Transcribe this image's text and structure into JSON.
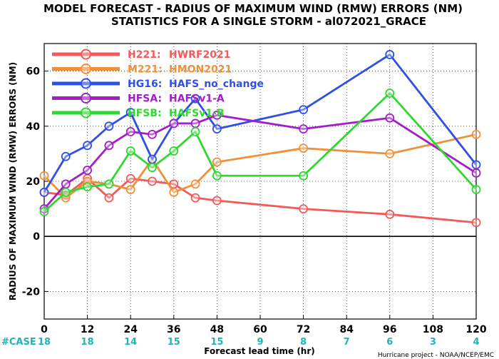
{
  "chart_data": {
    "type": "line",
    "title_line1": "MODEL FORECAST - RADIUS OF MAXIMUM WIND (RMW) ERRORS (NM)",
    "title_line2": "STATISTICS FOR A SINGLE STORM - al072021_GRACE",
    "ylabel": "RADIUS OF MAXIMUM WIND (RMW) ERRORS (NM)",
    "xlabel": "Forecast lead time (hr)",
    "footer": "Hurricane project - NOAA/NCEP/EMC",
    "case_label": "#CASE",
    "xlim": [
      0,
      120
    ],
    "ylim": [
      -30,
      70
    ],
    "x_ticks": [
      0,
      12,
      24,
      36,
      48,
      60,
      72,
      84,
      96,
      108,
      120
    ],
    "x_tick_labels": [
      "0",
      "12",
      "24",
      "36",
      "48",
      "60",
      "72",
      "84",
      "96",
      "108",
      "120"
    ],
    "y_ticks": [
      -20,
      0,
      20,
      40,
      60
    ],
    "y_tick_labels": [
      "-20",
      "0",
      "20",
      "40",
      "60"
    ],
    "case_counts": [
      "18",
      "18",
      "14",
      "15",
      "15",
      "9",
      "8",
      "7",
      "6",
      "3",
      "4"
    ],
    "legend_position": "top-left",
    "series": [
      {
        "code": "H221:",
        "model": "HWRF2021",
        "color": "#f25a5a",
        "x": [
          0,
          6,
          12,
          18,
          24,
          30,
          36,
          42,
          48,
          72,
          96,
          120
        ],
        "y": [
          16,
          15,
          21,
          14,
          21,
          20,
          19,
          14,
          13,
          10,
          8,
          5
        ]
      },
      {
        "code": "M221:",
        "model": "HMON2021",
        "color": "#f0903a",
        "x": [
          0,
          6,
          12,
          18,
          24,
          30,
          36,
          42,
          48,
          72,
          96,
          120
        ],
        "y": [
          22,
          14,
          20,
          19,
          17,
          28,
          16,
          19,
          27,
          32,
          30,
          37
        ]
      },
      {
        "code": "HG16:",
        "model": "HAFS_no_change",
        "color": "#2f4fe8",
        "x": [
          0,
          6,
          12,
          18,
          24,
          30,
          36,
          42,
          48,
          72,
          96,
          120
        ],
        "y": [
          16,
          29,
          33,
          40,
          45,
          28,
          41,
          50,
          39,
          46,
          66,
          26
        ]
      },
      {
        "code": "HFSA:",
        "model": "HAFSv1-A",
        "color": "#a21ec9",
        "x": [
          0,
          6,
          12,
          18,
          24,
          30,
          36,
          42,
          48,
          72,
          96,
          120
        ],
        "y": [
          10,
          19,
          24,
          33,
          38,
          37,
          41,
          41,
          44,
          39,
          43,
          23
        ]
      },
      {
        "code": "HFSB:",
        "model": "HAFSv1-B",
        "color": "#2fd82f",
        "x": [
          0,
          6,
          12,
          18,
          24,
          30,
          36,
          42,
          48,
          72,
          96,
          120
        ],
        "y": [
          9,
          16,
          18,
          19,
          31,
          25,
          31,
          38,
          22,
          22,
          52,
          17
        ]
      }
    ]
  }
}
